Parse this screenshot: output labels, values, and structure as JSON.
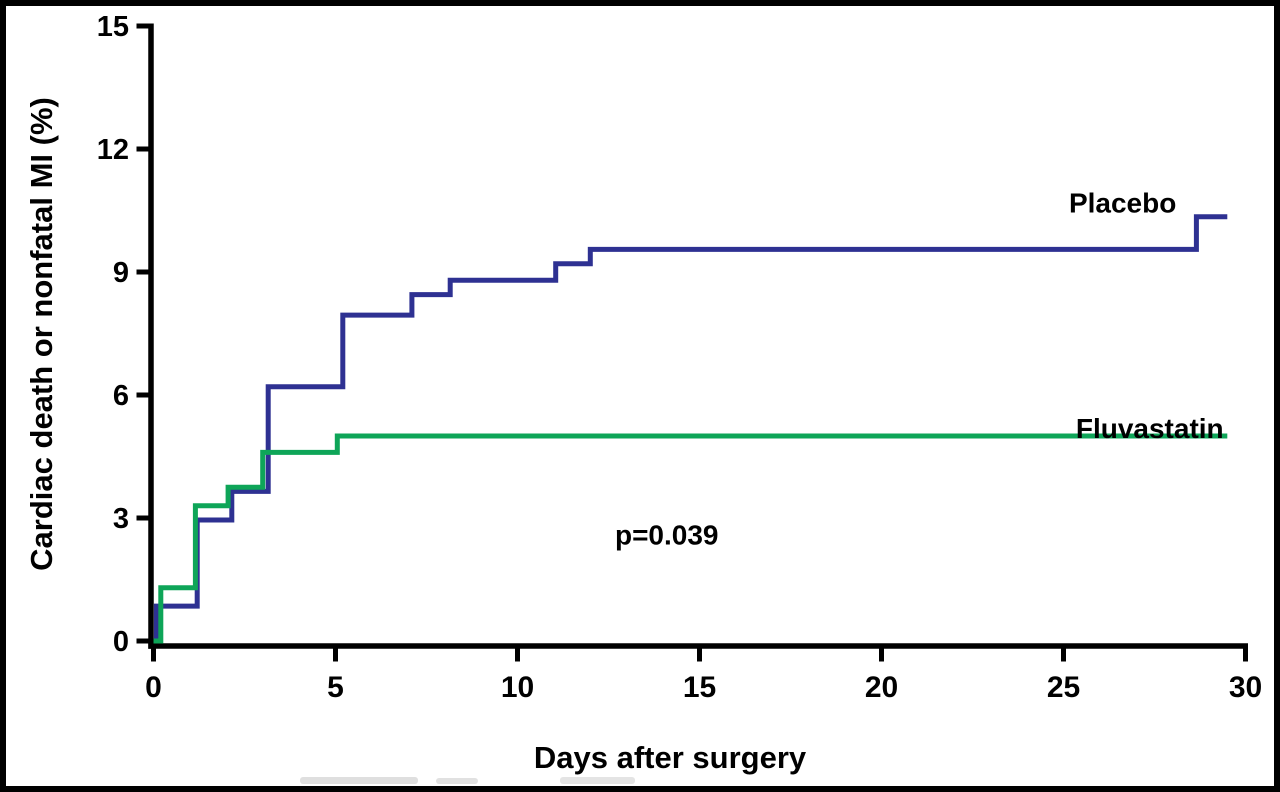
{
  "figure": {
    "background": "#ffffff",
    "border_color": "#000000",
    "axis_color": "#000000",
    "text_color": "#000000"
  },
  "chart_data": {
    "type": "line",
    "subtype": "kaplan-meier-step",
    "title": "",
    "xlabel": "Days after surgery",
    "ylabel": "Cardiac death or nonfatal MI (%)",
    "xlim": [
      0,
      30
    ],
    "ylim": [
      0,
      15
    ],
    "xticks": [
      0,
      5,
      10,
      15,
      20,
      25,
      30
    ],
    "yticks": [
      0,
      3,
      6,
      9,
      12,
      15
    ],
    "grid": false,
    "legend_position": "inline-right",
    "annotation": {
      "text": "p=0.039",
      "x": 14.1,
      "y": 2.6
    },
    "series": [
      {
        "name": "Placebo",
        "color": "#2e3192",
        "label_anchor": {
          "x": 28.1,
          "y": 10.45,
          "align": "end"
        },
        "points": [
          [
            0,
            0
          ],
          [
            0.08,
            0
          ],
          [
            0.08,
            0.85
          ],
          [
            1.2,
            0.85
          ],
          [
            1.2,
            2.95
          ],
          [
            2.15,
            2.95
          ],
          [
            2.15,
            3.65
          ],
          [
            3.15,
            3.65
          ],
          [
            3.15,
            6.2
          ],
          [
            5.2,
            6.2
          ],
          [
            5.2,
            7.95
          ],
          [
            7.1,
            7.95
          ],
          [
            7.1,
            8.45
          ],
          [
            8.15,
            8.45
          ],
          [
            8.15,
            8.8
          ],
          [
            11.05,
            8.8
          ],
          [
            11.05,
            9.2
          ],
          [
            12,
            9.2
          ],
          [
            12,
            9.55
          ],
          [
            28.65,
            9.55
          ],
          [
            28.65,
            10.35
          ],
          [
            29.5,
            10.35
          ]
        ]
      },
      {
        "name": "Fluvastatin",
        "color": "#0ea558",
        "label_anchor": {
          "x": 29.4,
          "y": 4.95,
          "align": "end"
        },
        "points": [
          [
            0,
            0
          ],
          [
            0.2,
            0
          ],
          [
            0.2,
            1.3
          ],
          [
            1.15,
            1.3
          ],
          [
            1.15,
            3.3
          ],
          [
            2.05,
            3.3
          ],
          [
            2.05,
            3.75
          ],
          [
            3.0,
            3.75
          ],
          [
            3.0,
            4.6
          ],
          [
            5.05,
            4.6
          ],
          [
            5.05,
            5.0
          ],
          [
            29.5,
            5.0
          ]
        ]
      }
    ]
  }
}
